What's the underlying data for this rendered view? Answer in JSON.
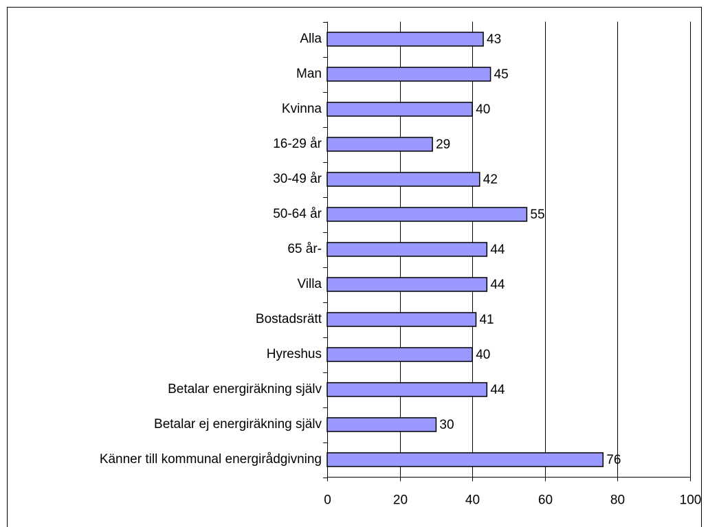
{
  "chart_data": {
    "type": "bar",
    "orientation": "horizontal",
    "categories": [
      "Alla",
      "Man",
      "Kvinna",
      "16-29 år",
      "30-49 år",
      "50-64 år",
      "65 år-",
      "Villa",
      "Bostadsrätt",
      "Hyreshus",
      "Betalar energiräkning själv",
      "Betalar ej energiräkning själv",
      "Känner till kommunal energirådgivning"
    ],
    "values": [
      43,
      45,
      40,
      29,
      42,
      55,
      44,
      44,
      41,
      40,
      44,
      30,
      76
    ],
    "color": "#9999ff",
    "xlim": [
      0,
      100
    ],
    "xticks": [
      0,
      20,
      40,
      60,
      80,
      100
    ],
    "grid": true
  }
}
